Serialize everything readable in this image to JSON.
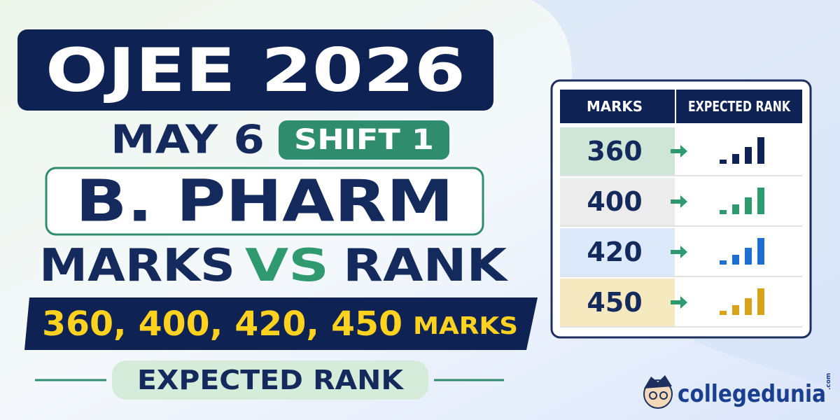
{
  "header": {
    "title": "OJEE 2026",
    "date": "MAY 6",
    "shift": "SHIFT 1",
    "course": "B. PHARM"
  },
  "headline": {
    "left": "MARKS",
    "middle": "VS",
    "right": "RANK"
  },
  "marks_bar": {
    "values": "360, 400, 420, 450",
    "unit": "MARKS"
  },
  "subtitle": "EXPECTED RANK",
  "table": {
    "columns": [
      "MARKS",
      "EXPECTED RANK"
    ],
    "rows": [
      [
        "360"
      ],
      [
        "400"
      ],
      [
        "420"
      ],
      [
        "450"
      ]
    ]
  },
  "logo": {
    "name": "collegedunia",
    "suffix": ".com"
  }
}
